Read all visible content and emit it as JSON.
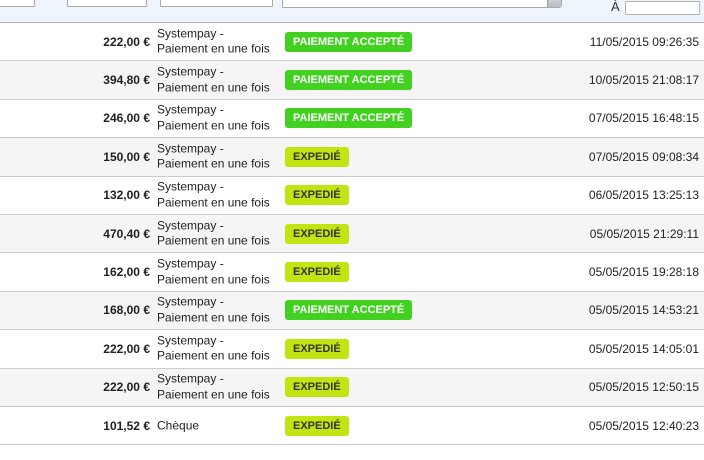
{
  "filters": {
    "date_to_label": "À",
    "text_inputs_value": "",
    "status_select_value": ""
  },
  "status_colors": {
    "accepted_bg": "#42d121",
    "accepted_text": "#ffffff",
    "shipped_bg": "#c2e512",
    "shipped_text": "#333333"
  },
  "rows": [
    {
      "total": "222,00 €",
      "payment_line1": "Systempay -",
      "payment_line2": "Paiement en une fois",
      "status": "PAIEMENT ACCEPTÉ",
      "status_type": "accepted",
      "date": "11/05/2015 09:26:35"
    },
    {
      "total": "394,80 €",
      "payment_line1": "Systempay -",
      "payment_line2": "Paiement en une fois",
      "status": "PAIEMENT ACCEPTÉ",
      "status_type": "accepted",
      "date": "10/05/2015 21:08:17"
    },
    {
      "total": "246,00 €",
      "payment_line1": "Systempay -",
      "payment_line2": "Paiement en une fois",
      "status": "PAIEMENT ACCEPTÉ",
      "status_type": "accepted",
      "date": "07/05/2015 16:48:15"
    },
    {
      "total": "150,00 €",
      "payment_line1": "Systempay -",
      "payment_line2": "Paiement en une fois",
      "status": "EXPEDIÉ",
      "status_type": "shipped",
      "date": "07/05/2015 09:08:34"
    },
    {
      "total": "132,00 €",
      "payment_line1": "Systempay -",
      "payment_line2": "Paiement en une fois",
      "status": "EXPEDIÉ",
      "status_type": "shipped",
      "date": "06/05/2015 13:25:13"
    },
    {
      "total": "470,40 €",
      "payment_line1": "Systempay -",
      "payment_line2": "Paiement en une fois",
      "status": "EXPEDIÉ",
      "status_type": "shipped",
      "date": "05/05/2015 21:29:11"
    },
    {
      "total": "162,00 €",
      "payment_line1": "Systempay -",
      "payment_line2": "Paiement en une fois",
      "status": "EXPEDIÉ",
      "status_type": "shipped",
      "date": "05/05/2015 19:28:18"
    },
    {
      "total": "168,00 €",
      "payment_line1": "Systempay -",
      "payment_line2": "Paiement en une fois",
      "status": "PAIEMENT ACCEPTÉ",
      "status_type": "accepted",
      "date": "05/05/2015 14:53:21"
    },
    {
      "total": "222,00 €",
      "payment_line1": "Systempay -",
      "payment_line2": "Paiement en une fois",
      "status": "EXPEDIÉ",
      "status_type": "shipped",
      "date": "05/05/2015 14:05:01"
    },
    {
      "total": "222,00 €",
      "payment_line1": "Systempay -",
      "payment_line2": "Paiement en une fois",
      "status": "EXPEDIÉ",
      "status_type": "shipped",
      "date": "05/05/2015 12:50:15"
    },
    {
      "total": "101,52 €",
      "payment_line1": "Chèque",
      "payment_line2": "",
      "status": "EXPEDIÉ",
      "status_type": "shipped",
      "date": "05/05/2015 12:40:23"
    }
  ]
}
